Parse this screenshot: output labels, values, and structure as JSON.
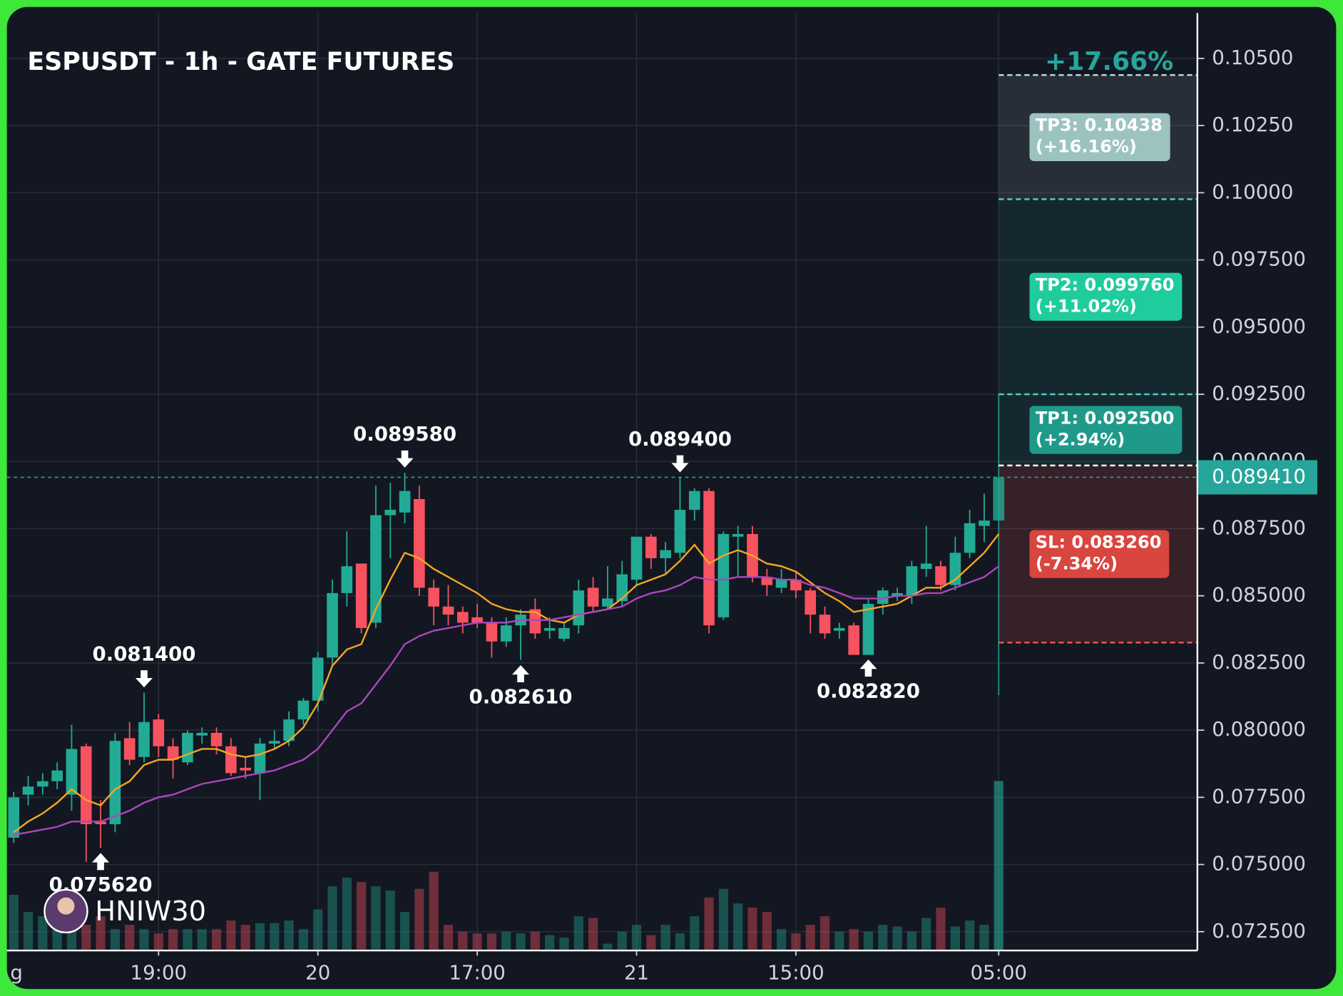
{
  "chart_data": {
    "type": "candlestick",
    "title": "ESPUSDT - 1h - GATE FUTURES",
    "watermark": "HNIW30",
    "categories": [
      "g",
      null,
      null,
      null,
      null,
      null,
      null,
      null,
      null,
      null,
      "19:00",
      null,
      null,
      null,
      null,
      null,
      null,
      null,
      null,
      null,
      null,
      "20",
      null,
      null,
      null,
      null,
      null,
      null,
      null,
      null,
      null,
      null,
      "17:00",
      null,
      null,
      null,
      null,
      null,
      null,
      null,
      null,
      null,
      null,
      "21",
      null,
      null,
      null,
      null,
      null,
      null,
      null,
      null,
      null,
      null,
      "15:00",
      null,
      null,
      null,
      null,
      null,
      null,
      null,
      null,
      null,
      null,
      null,
      null,
      null,
      "05:00"
    ],
    "open": [
      0.076,
      0.0776,
      0.0779,
      0.0781,
      0.0776,
      0.0794,
      0.0766,
      0.0765,
      0.0797,
      0.079,
      0.0804,
      0.0794,
      0.0788,
      0.0798,
      0.0799,
      0.0794,
      0.0786,
      0.0784,
      0.0795,
      0.0796,
      0.0804,
      0.0811,
      0.0827,
      0.0851,
      0.0862,
      0.084,
      0.088,
      0.0881,
      0.0886,
      0.0853,
      0.0846,
      0.0844,
      0.0842,
      0.084,
      0.0833,
      0.0839,
      0.0845,
      0.0837,
      0.0834,
      0.0839,
      0.0853,
      0.0846,
      0.0848,
      0.0856,
      0.0872,
      0.0864,
      0.0866,
      0.0882,
      0.0889,
      0.0842,
      0.0872,
      0.0873,
      0.0857,
      0.0853,
      0.0856,
      0.0852,
      0.0843,
      0.0837,
      0.0839,
      0.0828,
      0.0847,
      0.085,
      0.085,
      0.086,
      0.0861,
      0.0854,
      0.0866,
      0.0876,
      0.0878
    ],
    "high": [
      0.0777,
      0.0783,
      0.0784,
      0.0788,
      0.0802,
      0.0795,
      0.0774,
      0.0799,
      0.0803,
      0.0814,
      0.0806,
      0.0797,
      0.08,
      0.0801,
      0.0801,
      0.0797,
      0.079,
      0.0797,
      0.08,
      0.0807,
      0.0812,
      0.0829,
      0.0856,
      0.0874,
      0.0862,
      0.0891,
      0.0892,
      0.08958,
      0.0891,
      0.0856,
      0.0854,
      0.0846,
      0.0847,
      0.0842,
      0.0842,
      0.0845,
      0.0849,
      0.0842,
      0.084,
      0.0856,
      0.0857,
      0.0861,
      0.0863,
      0.0872,
      0.0873,
      0.087,
      0.0894,
      0.089,
      0.089,
      0.0874,
      0.0876,
      0.0876,
      0.086,
      0.086,
      0.0859,
      0.0853,
      0.0846,
      0.084,
      0.084,
      0.0849,
      0.0853,
      0.0853,
      0.0863,
      0.0876,
      0.0863,
      0.0872,
      0.0882,
      0.0888,
      0.0925
    ],
    "low": [
      0.0758,
      0.0772,
      0.0776,
      0.0778,
      0.077,
      0.0751,
      0.07562,
      0.0762,
      0.0787,
      0.0788,
      0.079,
      0.0782,
      0.0787,
      0.0795,
      0.0791,
      0.0783,
      0.0782,
      0.0774,
      0.0793,
      0.0794,
      0.0802,
      0.0807,
      0.0824,
      0.0846,
      0.0836,
      0.0838,
      0.0864,
      0.0877,
      0.085,
      0.0839,
      0.0839,
      0.0836,
      0.0838,
      0.0827,
      0.0831,
      0.08261,
      0.0834,
      0.0834,
      0.0833,
      0.0836,
      0.0844,
      0.0845,
      0.0846,
      0.0854,
      0.086,
      0.0858,
      0.0864,
      0.0878,
      0.0836,
      0.0841,
      0.0857,
      0.0855,
      0.085,
      0.0851,
      0.0849,
      0.0836,
      0.0834,
      0.0834,
      0.0828,
      0.08282,
      0.0843,
      0.0848,
      0.0847,
      0.0857,
      0.0852,
      0.0852,
      0.0864,
      0.087,
      0.0813
    ],
    "close": [
      0.0775,
      0.0779,
      0.0781,
      0.0785,
      0.0793,
      0.0765,
      0.0765,
      0.0796,
      0.0789,
      0.0803,
      0.0794,
      0.0789,
      0.0799,
      0.0799,
      0.0794,
      0.0784,
      0.0785,
      0.0795,
      0.0796,
      0.0804,
      0.0811,
      0.0827,
      0.0851,
      0.0861,
      0.0838,
      0.088,
      0.0882,
      0.0889,
      0.0853,
      0.0846,
      0.0843,
      0.084,
      0.084,
      0.0833,
      0.0839,
      0.0843,
      0.0836,
      0.0838,
      0.0838,
      0.0852,
      0.0846,
      0.0849,
      0.0858,
      0.0872,
      0.0864,
      0.0867,
      0.0882,
      0.0889,
      0.0839,
      0.0873,
      0.0873,
      0.0857,
      0.0854,
      0.0856,
      0.0852,
      0.0843,
      0.0836,
      0.0838,
      0.0828,
      0.0847,
      0.0852,
      0.0851,
      0.0861,
      0.0862,
      0.0854,
      0.0866,
      0.0877,
      0.0878,
      0.08941
    ],
    "volume": [
      65,
      45,
      40,
      55,
      60,
      30,
      40,
      25,
      30,
      25,
      20,
      25,
      25,
      25,
      25,
      35,
      30,
      32,
      32,
      35,
      25,
      48,
      75,
      85,
      80,
      75,
      70,
      45,
      72,
      92,
      30,
      22,
      20,
      20,
      22,
      20,
      22,
      18,
      15,
      40,
      38,
      8,
      22,
      30,
      18,
      30,
      20,
      40,
      62,
      72,
      55,
      50,
      45,
      25,
      20,
      30,
      40,
      22,
      25,
      22,
      30,
      28,
      22,
      38,
      50,
      28,
      35,
      30,
      198
    ],
    "up_color": "#22ab94",
    "down_color": "#f7525f",
    "lines": [
      {
        "color": "#f5a623",
        "values": [
          0.0762,
          0.0766,
          0.0769,
          0.0773,
          0.0778,
          0.0774,
          0.0772,
          0.0778,
          0.0781,
          0.0787,
          0.0789,
          0.0789,
          0.0791,
          0.0793,
          0.0793,
          0.0791,
          0.079,
          0.0791,
          0.0793,
          0.0796,
          0.0801,
          0.081,
          0.0824,
          0.083,
          0.0832,
          0.0845,
          0.0856,
          0.0866,
          0.0864,
          0.086,
          0.0857,
          0.0854,
          0.0851,
          0.0847,
          0.0845,
          0.0844,
          0.0844,
          0.0841,
          0.084,
          0.0843,
          0.0844,
          0.0845,
          0.0849,
          0.0854,
          0.0856,
          0.0858,
          0.0863,
          0.0869,
          0.0862,
          0.0865,
          0.0867,
          0.0865,
          0.0862,
          0.0861,
          0.0859,
          0.0855,
          0.0851,
          0.0848,
          0.0844,
          0.0845,
          0.0846,
          0.0847,
          0.085,
          0.0853,
          0.0853,
          0.0856,
          0.0861,
          0.0866,
          0.0873
        ]
      },
      {
        "color": "#ab47bc",
        "values": [
          0.0761,
          0.0762,
          0.0763,
          0.0764,
          0.0766,
          0.0766,
          0.0766,
          0.0768,
          0.077,
          0.0773,
          0.0775,
          0.0776,
          0.0778,
          0.078,
          0.0781,
          0.0782,
          0.0783,
          0.0784,
          0.0785,
          0.0787,
          0.0789,
          0.0793,
          0.08,
          0.0807,
          0.081,
          0.0817,
          0.0824,
          0.0832,
          0.0835,
          0.0837,
          0.0838,
          0.0839,
          0.084,
          0.084,
          0.084,
          0.0841,
          0.0841,
          0.0841,
          0.0842,
          0.0843,
          0.0844,
          0.0845,
          0.0846,
          0.0849,
          0.0851,
          0.0852,
          0.0854,
          0.0857,
          0.0856,
          0.0856,
          0.0857,
          0.0857,
          0.0857,
          0.0856,
          0.0856,
          0.0854,
          0.0853,
          0.0851,
          0.0849,
          0.0849,
          0.0849,
          0.085,
          0.085,
          0.0851,
          0.0851,
          0.0853,
          0.0855,
          0.0857,
          0.0861
        ]
      }
    ],
    "ylim": [
      0.0718,
      0.10669
    ],
    "yticks": [
      {
        "value": 0.105,
        "label": "0.10500"
      },
      {
        "value": 0.1025,
        "label": "0.10250"
      },
      {
        "value": 0.1,
        "label": "0.10000"
      },
      {
        "value": 0.0975,
        "label": "0.097500"
      },
      {
        "value": 0.095,
        "label": "0.095000"
      },
      {
        "value": 0.0925,
        "label": "0.092500"
      },
      {
        "value": 0.09,
        "label": "0.090000"
      },
      {
        "value": 0.0875,
        "label": "0.087500"
      },
      {
        "value": 0.085,
        "label": "0.085000"
      },
      {
        "value": 0.0825,
        "label": "0.082500"
      },
      {
        "value": 0.08,
        "label": "0.080000"
      },
      {
        "value": 0.0775,
        "label": "0.077500"
      },
      {
        "value": 0.075,
        "label": "0.075000"
      },
      {
        "value": 0.0725,
        "label": "0.072500"
      }
    ],
    "grid": true,
    "last_price": {
      "value": 0.08941,
      "label": "0.089410",
      "color": "#26a69a"
    },
    "annotations": [
      {
        "at": "low",
        "value": 0.07562,
        "label": "0.075620"
      },
      {
        "at": "high",
        "value": 0.0814,
        "label": "0.081400"
      },
      {
        "at": "high",
        "value": 0.08958,
        "label": "0.089580"
      },
      {
        "at": "low",
        "value": 0.08261,
        "label": "0.082610"
      },
      {
        "at": "high",
        "value": 0.0894,
        "label": "0.089400"
      },
      {
        "at": "low",
        "value": 0.08282,
        "label": "0.082820"
      }
    ],
    "position": {
      "entry": 0.08985,
      "max_gain": "+17.66%",
      "targets": [
        {
          "value": 0.0925,
          "label": "TP1: 0.092500",
          "change": "(+2.94%)",
          "color": "#1f9a8a",
          "zone": "rgba(38,166,154,0.12)"
        },
        {
          "value": 0.09976,
          "label": "TP2: 0.099760",
          "change": "(+11.02%)",
          "color": "#1fcc9d",
          "zone": "rgba(38,166,154,0.12)"
        },
        {
          "value": 0.10438,
          "label": "TP3: 0.10438",
          "change": "(+16.16%)",
          "color": "#9cc3c0",
          "zone": "rgba(200,215,225,0.12)"
        }
      ],
      "stop": {
        "value": 0.08326,
        "label": "SL: 0.083260",
        "change": "(-7.34%)",
        "color": "#d9463f",
        "zone": "rgba(239,83,80,0.17)"
      }
    }
  }
}
